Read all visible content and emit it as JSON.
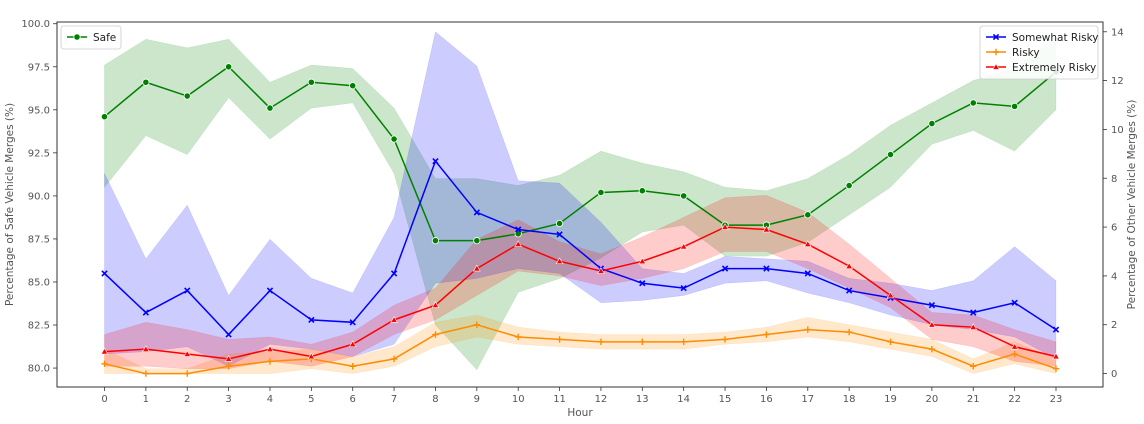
{
  "chart_data": {
    "type": "line",
    "xlabel": "Hour",
    "ylabel_left": "Percentage of Safe Vehicle Merges (%)",
    "ylabel_right": "Percentage of Other Vehicle Merges (%)",
    "x": [
      0,
      1,
      2,
      3,
      4,
      5,
      6,
      7,
      8,
      9,
      10,
      11,
      12,
      13,
      14,
      15,
      16,
      17,
      18,
      19,
      20,
      21,
      22,
      23
    ],
    "ylim_left": [
      78.9,
      100.1
    ],
    "ylim_right": [
      -0.55,
      14.4
    ],
    "yticks_left": [
      "80.0",
      "82.5",
      "85.0",
      "87.5",
      "90.0",
      "92.5",
      "95.0",
      "97.5",
      "100.0"
    ],
    "yticks_right": [
      "0",
      "2",
      "4",
      "6",
      "8",
      "10",
      "12",
      "14"
    ],
    "grid": false,
    "legend_left_position": "top-left",
    "legend_right_position": "top-right",
    "series": [
      {
        "name": "Safe",
        "axis": "left",
        "color": "#008000",
        "marker": "circle",
        "values": [
          94.6,
          96.6,
          95.8,
          97.5,
          95.1,
          96.6,
          96.4,
          93.3,
          87.4,
          87.4,
          87.8,
          88.4,
          90.2,
          90.3,
          90.0,
          88.3,
          88.3,
          88.9,
          90.6,
          92.4,
          94.2,
          95.4,
          95.2,
          97.2
        ],
        "lower": [
          90.5,
          93.5,
          92.4,
          95.7,
          93.3,
          95.1,
          95.4,
          91.3,
          82.5,
          79.9,
          84.4,
          85.2,
          86.4,
          87.9,
          88.3,
          86.5,
          86.5,
          87.3,
          88.9,
          90.5,
          93.0,
          93.8,
          92.6,
          95.0
        ],
        "upper": [
          97.6,
          99.1,
          98.6,
          99.1,
          96.6,
          97.6,
          97.4,
          95.1,
          91.0,
          91.0,
          90.6,
          91.2,
          92.6,
          91.9,
          91.4,
          90.5,
          90.3,
          91.0,
          92.4,
          94.1,
          95.4,
          96.7,
          97.4,
          99.2
        ]
      },
      {
        "name": "Somewhat Risky",
        "axis": "right",
        "color": "#0000ff",
        "marker": "x",
        "values": [
          4.1,
          2.5,
          3.4,
          1.6,
          3.4,
          2.2,
          2.1,
          4.1,
          8.7,
          6.6,
          5.9,
          5.7,
          4.3,
          3.7,
          3.5,
          4.3,
          4.3,
          4.1,
          3.4,
          3.1,
          2.8,
          2.5,
          2.9,
          1.8
        ],
        "lower": [
          0.8,
          0.9,
          1.1,
          0.3,
          1.2,
          1.0,
          0.7,
          1.2,
          3.7,
          3.9,
          4.3,
          4.1,
          2.9,
          3.0,
          3.2,
          3.7,
          3.8,
          3.3,
          2.9,
          2.4,
          2.0,
          1.8,
          1.5,
          0.6
        ],
        "upper": [
          8.2,
          4.7,
          6.9,
          3.2,
          5.5,
          3.9,
          3.3,
          6.4,
          14.0,
          12.6,
          7.9,
          7.8,
          6.2,
          4.3,
          4.1,
          4.8,
          4.7,
          4.6,
          3.9,
          3.7,
          3.4,
          3.8,
          5.2,
          3.8
        ]
      },
      {
        "name": "Risky",
        "axis": "right",
        "color": "#ff8c00",
        "marker": "plus",
        "values": [
          0.4,
          0.0,
          0.0,
          0.3,
          0.5,
          0.6,
          0.3,
          0.6,
          1.6,
          2.0,
          1.5,
          1.4,
          1.3,
          1.3,
          1.3,
          1.4,
          1.6,
          1.8,
          1.7,
          1.3,
          1.0,
          0.3,
          0.8,
          0.2
        ],
        "lower": [
          0.0,
          0.0,
          0.0,
          0.0,
          0.0,
          0.2,
          0.0,
          0.3,
          1.1,
          1.5,
          1.2,
          1.1,
          1.0,
          1.0,
          1.0,
          1.2,
          1.3,
          1.5,
          1.3,
          1.0,
          0.7,
          0.0,
          0.4,
          0.0
        ],
        "upper": [
          1.0,
          0.2,
          0.2,
          0.8,
          0.9,
          1.0,
          0.7,
          1.1,
          2.1,
          2.4,
          1.9,
          1.7,
          1.6,
          1.6,
          1.6,
          1.7,
          1.9,
          2.3,
          2.0,
          1.7,
          1.4,
          0.6,
          1.3,
          0.6
        ]
      },
      {
        "name": "Extremely Risky",
        "axis": "right",
        "color": "#ff0000",
        "marker": "triangle",
        "values": [
          0.9,
          1.0,
          0.8,
          0.6,
          1.0,
          0.7,
          1.2,
          2.2,
          2.8,
          4.3,
          5.3,
          4.6,
          4.2,
          4.6,
          5.2,
          6.0,
          5.9,
          5.3,
          4.4,
          3.2,
          2.0,
          1.9,
          1.1,
          0.7
        ],
        "lower": [
          0.3,
          0.3,
          0.2,
          0.2,
          0.5,
          0.3,
          0.7,
          1.6,
          2.2,
          3.2,
          4.2,
          4.0,
          3.6,
          3.9,
          4.3,
          5.0,
          5.0,
          4.3,
          3.5,
          2.7,
          1.4,
          1.1,
          0.5,
          0.3
        ],
        "upper": [
          1.6,
          2.1,
          1.8,
          1.4,
          1.5,
          1.2,
          1.7,
          2.8,
          3.5,
          5.5,
          6.3,
          5.4,
          4.9,
          5.6,
          6.4,
          7.2,
          7.3,
          6.6,
          5.3,
          3.9,
          2.5,
          2.4,
          1.8,
          1.3
        ]
      }
    ]
  }
}
